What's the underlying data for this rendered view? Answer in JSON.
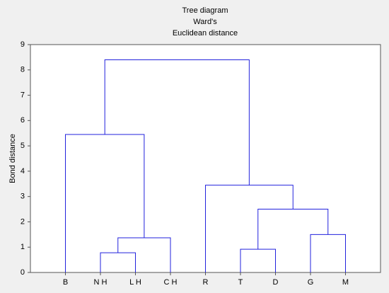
{
  "chart_data": {
    "type": "dendrogram",
    "title": "Tree diagram",
    "subtitle": [
      "Ward's",
      "Euclidean distance"
    ],
    "y_label": "Bond distance",
    "categories": [
      "B",
      "N H",
      "L H",
      "C H",
      "R",
      "T",
      "D",
      "G",
      "M"
    ],
    "merges": [
      {
        "left": 1,
        "right": 2,
        "height": 0.78
      },
      {
        "left": 9,
        "right": 3,
        "height": 1.37
      },
      {
        "left": 0,
        "right": 10,
        "height": 5.45
      },
      {
        "left": 5,
        "right": 6,
        "height": 0.92
      },
      {
        "left": 7,
        "right": 8,
        "height": 1.5
      },
      {
        "left": 12,
        "right": 13,
        "height": 2.5
      },
      {
        "left": 4,
        "right": 14,
        "height": 3.45
      },
      {
        "left": 11,
        "right": 15,
        "height": 8.4
      }
    ],
    "color": "#2222dd",
    "ylim": [
      0,
      9
    ],
    "yticks": [
      0,
      1,
      2,
      3,
      4,
      5,
      6,
      7,
      8,
      9
    ]
  }
}
